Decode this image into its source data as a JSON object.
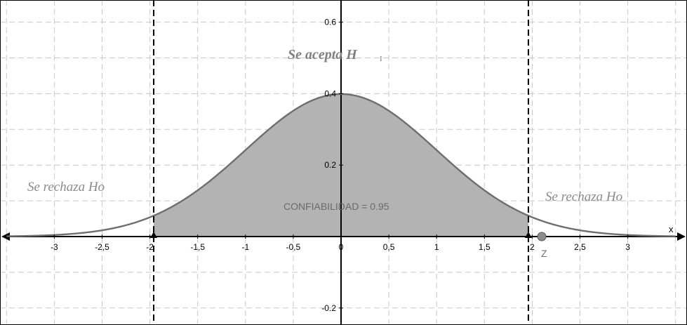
{
  "chart_data": {
    "type": "area",
    "curve": "standard normal density",
    "mean": 0,
    "sd": 1,
    "xlim": [
      -3.5,
      3.5
    ],
    "ylim": [
      -0.22,
      0.64
    ],
    "grid": true,
    "x_ticks": [
      {
        "value": -3,
        "label": "-3"
      },
      {
        "value": -2.5,
        "label": "-2,5"
      },
      {
        "value": -2,
        "label": "-2"
      },
      {
        "value": -1.5,
        "label": "-1,5"
      },
      {
        "value": -1,
        "label": "-1"
      },
      {
        "value": -0.5,
        "label": "-0,5"
      },
      {
        "value": 0,
        "label": "0"
      },
      {
        "value": 0.5,
        "label": "0,5"
      },
      {
        "value": 1,
        "label": "1"
      },
      {
        "value": 1.5,
        "label": "1,5"
      },
      {
        "value": 2,
        "label": "2"
      },
      {
        "value": 2.5,
        "label": "2,5"
      },
      {
        "value": 3,
        "label": "3"
      }
    ],
    "y_ticks": [
      {
        "value": 0.6,
        "label": "0.6"
      },
      {
        "value": 0.4,
        "label": "0.4"
      },
      {
        "value": 0.2,
        "label": "0.2"
      },
      {
        "value": -0.2,
        "label": "-0.2"
      }
    ],
    "x_axis_name": "x",
    "shaded_region": {
      "from": -1.96,
      "to": 1.96
    },
    "critical_values": [
      -1.96,
      1.96
    ],
    "z_point": {
      "x": 2.1,
      "y": 0,
      "label": "Z"
    },
    "annotations": {
      "accept_main": "Se acepta H",
      "accept_sub": "I",
      "reject_left": "Se rechaza Ho",
      "reject_right": "Se rechaza Ho",
      "confidence": "CONFIABILIDAD = 0.95"
    },
    "colors": {
      "fill": "#b3b3b3",
      "curve": "#6e6e6e",
      "grid": "#c8c8c8",
      "axis": "#000000",
      "point": "#8c8c8c"
    }
  }
}
